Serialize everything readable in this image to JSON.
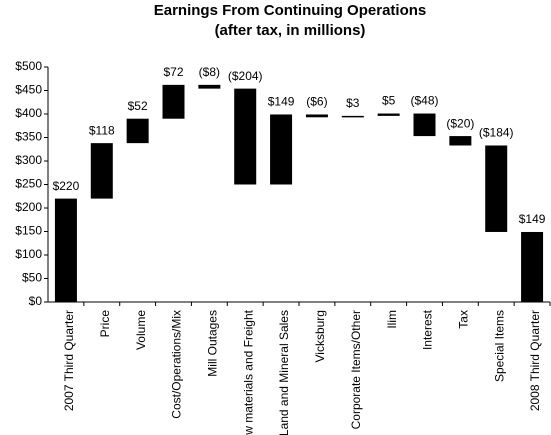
{
  "chart_data": {
    "type": "waterfall",
    "title": [
      "Earnings From Continuing Operations",
      "(after tax, in millions)"
    ],
    "categories": [
      "2007 Third Quarter",
      "Price",
      "Volume",
      "Cost/Operations/Mix",
      "Mill Outages",
      "Raw materials and Freight",
      "Land and Mineral Sales",
      "Vicksburg",
      "Corporate Items/Other",
      "Ilim",
      "Interest",
      "Tax",
      "Special Items",
      "2008 Third Quarter"
    ],
    "values": [
      220,
      118,
      52,
      72,
      -8,
      -204,
      149,
      -6,
      3,
      5,
      -48,
      -20,
      -184,
      149
    ],
    "value_labels": [
      "$220",
      "$118",
      "$52",
      "$72",
      "($8)",
      "($204)",
      "$149",
      "($6)",
      "$3",
      "$5",
      "($48)",
      "($20)",
      "($184)",
      "$149"
    ],
    "measure": [
      "absolute",
      "relative",
      "relative",
      "relative",
      "relative",
      "relative",
      "relative",
      "relative",
      "relative",
      "relative",
      "relative",
      "relative",
      "relative",
      "absolute"
    ],
    "color": "#000000",
    "ylim": [
      0,
      500
    ],
    "yticks": [
      {
        "value": 0,
        "label": "$0"
      },
      {
        "value": 50,
        "label": "$50"
      },
      {
        "value": 100,
        "label": "$100"
      },
      {
        "value": 150,
        "label": "$150"
      },
      {
        "value": 200,
        "label": "$200"
      },
      {
        "value": 250,
        "label": "$250"
      },
      {
        "value": 300,
        "label": "$300"
      },
      {
        "value": 350,
        "label": "$350"
      },
      {
        "value": 400,
        "label": "$400"
      },
      {
        "value": 450,
        "label": "$450"
      },
      {
        "value": 500,
        "label": "$500"
      }
    ],
    "grid": false
  }
}
